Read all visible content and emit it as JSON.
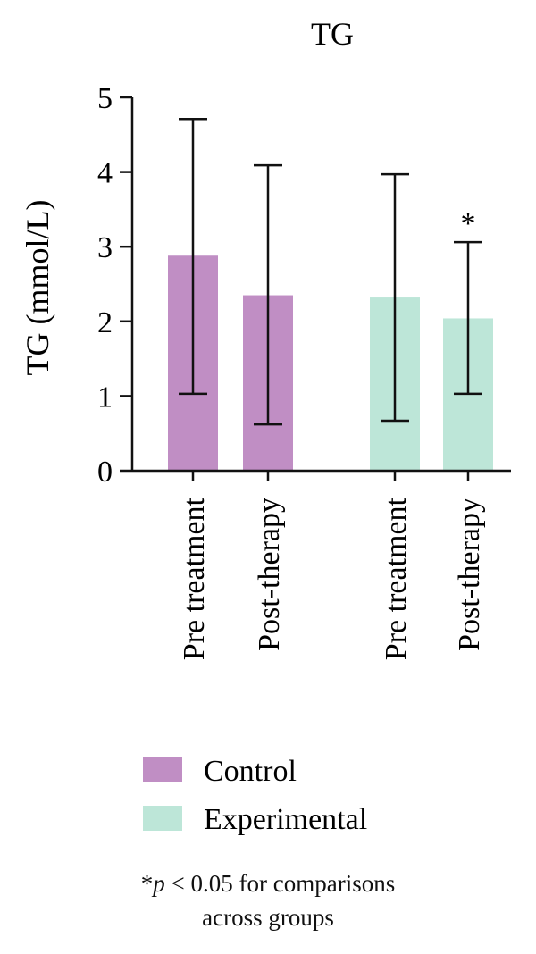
{
  "chart_data": {
    "type": "bar",
    "title": "TG",
    "ylabel": "TG (mmol/L)",
    "xlabel": "",
    "ylim": [
      0,
      5
    ],
    "yticks": [
      0,
      1,
      2,
      3,
      4,
      5
    ],
    "grid": false,
    "legend_placement": "bottom",
    "series": [
      {
        "name": "Control",
        "color": "#c08ec4",
        "categories": [
          "Pre treatment",
          "Post-therapy"
        ],
        "values": [
          2.88,
          2.35
        ],
        "error_low": [
          1.03,
          0.62
        ],
        "error_high": [
          4.71,
          4.09
        ]
      },
      {
        "name": "Experimental",
        "color": "#bde6d8",
        "categories": [
          "Pre treatment",
          "Post-therapy"
        ],
        "values": [
          2.32,
          2.04
        ],
        "error_low": [
          0.67,
          1.03
        ],
        "error_high": [
          3.97,
          3.06
        ]
      }
    ],
    "annotations": [
      {
        "text": "*",
        "series": 1,
        "category": 1
      }
    ]
  },
  "footnote": {
    "star": "*",
    "p": "p",
    "rest_line1": " < 0.05 for comparisons",
    "line2": "across groups"
  }
}
